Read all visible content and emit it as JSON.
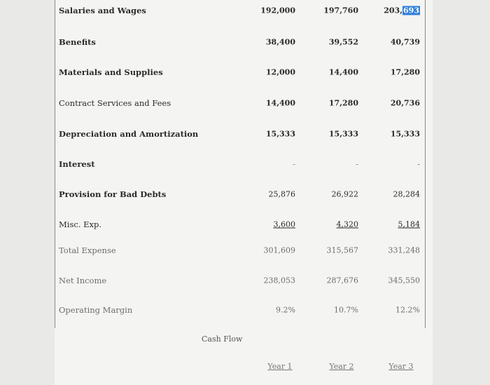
{
  "rows": [
    {
      "label": "Salaries and Wages",
      "y1": "192,000",
      "y2": "197,760",
      "y3_pre": "203,",
      "y3_hl": "693"
    },
    {
      "label": "Benefits",
      "y1": "38,400",
      "y2": "39,552",
      "y3": "40,739"
    },
    {
      "label": "Materials and Supplies",
      "y1": "12,000",
      "y2": "14,400",
      "y3": "17,280"
    },
    {
      "label": "Contract Services and Fees",
      "y1": "14,400",
      "y2": "17,280",
      "y3": "20,736"
    },
    {
      "label": "Depreciation and Amortization",
      "y1": "15,333",
      "y2": "15,333",
      "y3": "15,333"
    },
    {
      "label": "Interest",
      "y1": "-",
      "y2": "-",
      "y3": "-"
    },
    {
      "label": "Provision for Bad Debts",
      "y1": "25,876",
      "y2": "26,922",
      "y3": "28,284"
    },
    {
      "label": "Misc. Exp.",
      "y1": "3,600",
      "y2": "4,320",
      "y3": "5,184"
    },
    {
      "label": "Total Expense",
      "y1": "301,609",
      "y2": "315,567",
      "y3": "331,248"
    },
    {
      "label": "Net Income",
      "y1": "238,053",
      "y2": "287,676",
      "y3": "345,550"
    },
    {
      "label": "Operating Margin",
      "y1": "9.2%",
      "y2": "10.7%",
      "y3": "12.2%"
    }
  ],
  "cash_flow_label": "Cash Flow",
  "years": [
    "Year 1",
    "Year 2",
    "Year 3"
  ],
  "colors": {
    "highlight": "#2f7fd9",
    "background": "#e9e9e7",
    "sheet": "#f4f4f2",
    "border": "#8a8a8a"
  }
}
